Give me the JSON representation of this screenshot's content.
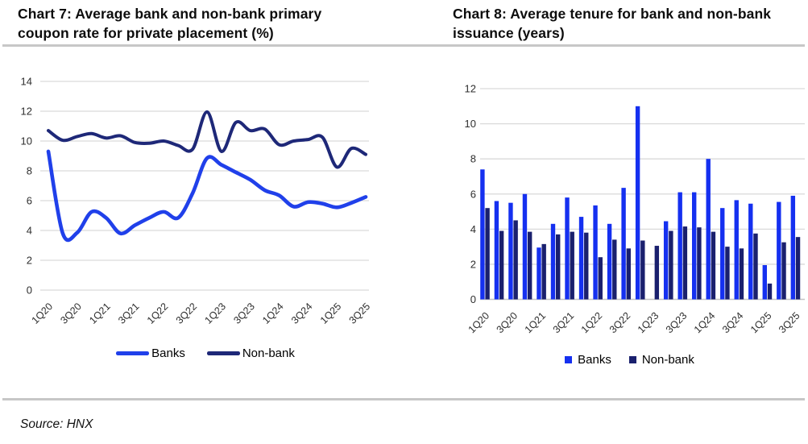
{
  "source": "Source: HNX",
  "colors": {
    "gridline": "#d9d9d9",
    "axis_line": "#c4c4c4",
    "divider": "#c7c7c7",
    "label_text": "#2e2e2e"
  },
  "chart_data": [
    {
      "type": "line",
      "title": "Chart 7: Average bank and non-bank primary coupon rate for private placement (%)",
      "xlabel": "",
      "ylabel": "",
      "ylim": [
        0,
        14
      ],
      "yticks": [
        0,
        2,
        4,
        6,
        8,
        10,
        12,
        14
      ],
      "grid": true,
      "legend_position": "bottom",
      "x_tick_labels": [
        "1Q20",
        "3Q20",
        "1Q21",
        "3Q21",
        "1Q22",
        "3Q22",
        "1Q23",
        "3Q23",
        "1Q24",
        "3Q24",
        "1Q25",
        "3Q25"
      ],
      "categories": [
        "1Q20",
        "2Q20",
        "3Q20",
        "4Q20",
        "1Q21",
        "2Q21",
        "3Q21",
        "4Q21",
        "1Q22",
        "2Q22",
        "3Q22",
        "4Q22",
        "1Q23",
        "2Q23",
        "3Q23",
        "4Q23",
        "1Q24",
        "2Q24",
        "3Q24",
        "4Q24",
        "1Q25",
        "2Q25",
        "3Q25"
      ],
      "series": [
        {
          "name": "Banks",
          "color": "#2040ea",
          "values": [
            9.3,
            3.8,
            3.85,
            5.25,
            4.85,
            3.8,
            4.35,
            4.85,
            5.25,
            4.85,
            6.5,
            8.85,
            8.4,
            7.9,
            7.4,
            6.7,
            6.35,
            5.6,
            5.9,
            5.8,
            5.55,
            5.85,
            6.25
          ]
        },
        {
          "name": "Non-bank",
          "color": "#1e2878",
          "values": [
            10.7,
            10.05,
            10.3,
            10.5,
            10.2,
            10.35,
            9.9,
            9.85,
            10.0,
            9.7,
            9.45,
            11.95,
            9.3,
            11.25,
            10.7,
            10.8,
            9.75,
            10.0,
            10.1,
            10.25,
            8.25,
            9.5,
            9.1
          ]
        }
      ]
    },
    {
      "type": "bar",
      "title": "Chart 8: Average tenure for bank and non-bank issuance (years)",
      "xlabel": "",
      "ylabel": "",
      "ylim": [
        0,
        12
      ],
      "yticks": [
        0,
        2,
        4,
        6,
        8,
        10,
        12
      ],
      "grid": true,
      "legend_position": "bottom",
      "x_tick_labels": [
        "1Q20",
        "3Q20",
        "1Q21",
        "3Q21",
        "1Q22",
        "3Q22",
        "1Q23",
        "3Q23",
        "1Q24",
        "3Q24",
        "1Q25",
        "3Q25"
      ],
      "categories": [
        "1Q20",
        "2Q20",
        "3Q20",
        "4Q20",
        "1Q21",
        "2Q21",
        "3Q21",
        "4Q21",
        "1Q22",
        "2Q22",
        "3Q22",
        "4Q22",
        "1Q23",
        "2Q23",
        "3Q23",
        "4Q23",
        "1Q24",
        "2Q24",
        "3Q24",
        "4Q24",
        "1Q25",
        "2Q25",
        "3Q25"
      ],
      "series": [
        {
          "name": "Banks",
          "color": "#1530f0",
          "values": [
            7.4,
            5.6,
            5.5,
            6.0,
            2.95,
            4.3,
            5.8,
            4.7,
            5.35,
            4.3,
            6.35,
            11.0,
            null,
            4.45,
            6.1,
            6.1,
            8.0,
            5.2,
            5.65,
            5.45,
            1.95,
            5.55,
            5.9
          ]
        },
        {
          "name": "Non-bank",
          "color": "#1a206e",
          "values": [
            5.2,
            3.9,
            4.5,
            3.85,
            3.15,
            3.7,
            3.85,
            3.8,
            2.4,
            3.4,
            2.9,
            3.35,
            3.05,
            3.9,
            4.15,
            4.1,
            3.85,
            3.0,
            2.9,
            3.75,
            0.9,
            3.25,
            3.55
          ]
        }
      ]
    }
  ]
}
